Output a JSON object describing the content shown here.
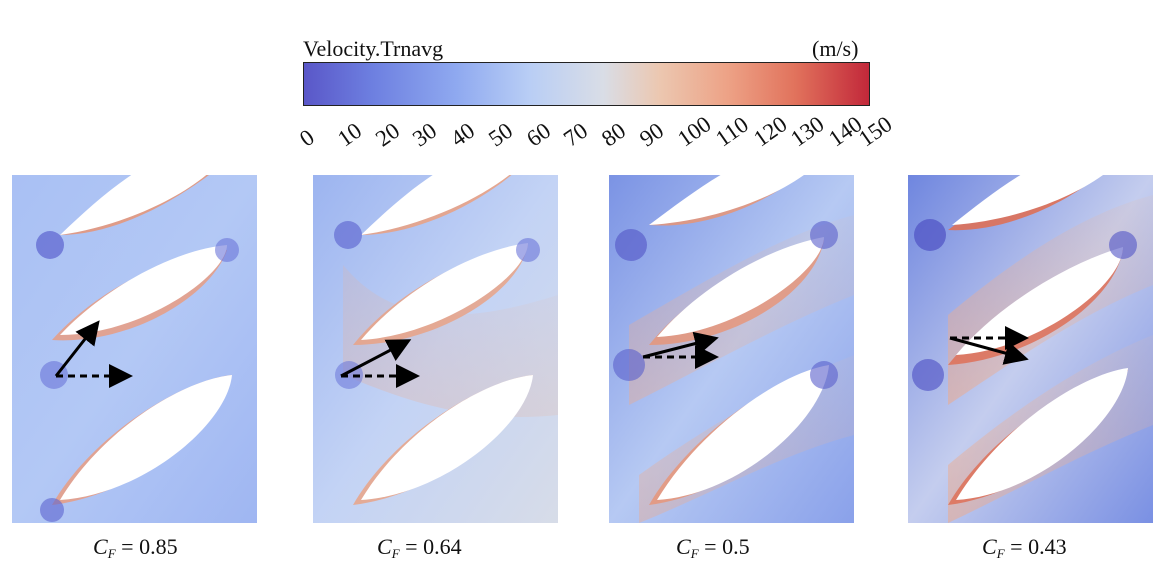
{
  "legend": {
    "title": "Velocity.Trnavg",
    "unit": "(m/s)",
    "ticks": [
      "0",
      "10",
      "20",
      "30",
      "40",
      "50",
      "60",
      "70",
      "80",
      "90",
      "100",
      "110",
      "120",
      "130",
      "140",
      "150"
    ],
    "colors": [
      "#5a57c8",
      "#6d7fe0",
      "#8fa9f0",
      "#b9cef5",
      "#d9dde6",
      "#ecc7b0",
      "#eda286",
      "#e1725c",
      "#c2283a"
    ]
  },
  "panels": [
    {
      "symbol": "C",
      "subscript": "F",
      "eq": "= ",
      "value": "0.85"
    },
    {
      "symbol": "C",
      "subscript": "F",
      "eq": "= ",
      "value": "0.64"
    },
    {
      "symbol": "C",
      "subscript": "F",
      "eq": "= ",
      "value": "0.5"
    },
    {
      "symbol": "C",
      "subscript": "F",
      "eq": "= ",
      "value": "0.43"
    }
  ]
}
